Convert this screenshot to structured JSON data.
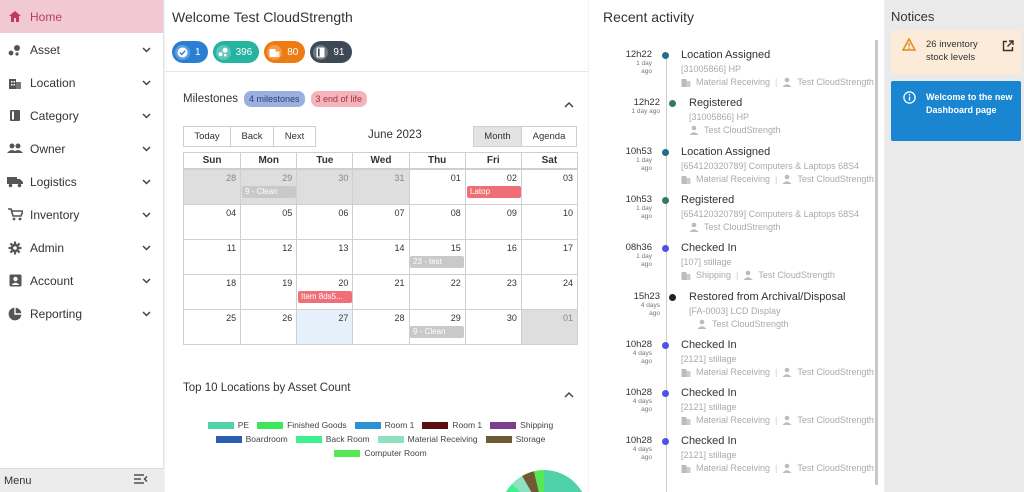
{
  "sidebar": {
    "items": [
      {
        "label": "Home",
        "icon": "home-icon"
      },
      {
        "label": "Asset",
        "icon": "asset-icon"
      },
      {
        "label": "Location",
        "icon": "location-icon"
      },
      {
        "label": "Category",
        "icon": "category-icon"
      },
      {
        "label": "Owner",
        "icon": "owner-icon"
      },
      {
        "label": "Logistics",
        "icon": "truck-icon"
      },
      {
        "label": "Inventory",
        "icon": "cart-icon"
      },
      {
        "label": "Admin",
        "icon": "gear-icon"
      },
      {
        "label": "Account",
        "icon": "account-icon"
      },
      {
        "label": "Reporting",
        "icon": "pie-chart-icon"
      }
    ],
    "footer_label": "Menu"
  },
  "main": {
    "welcome": "Welcome Test CloudStrength",
    "pills": [
      {
        "value": "1",
        "color": "#2b7fd3",
        "icon": "check-circle-icon"
      },
      {
        "value": "396",
        "color": "#26b3a0",
        "icon": "asset-icon"
      },
      {
        "value": "80",
        "color": "#ee7a12",
        "icon": "building-icon"
      },
      {
        "value": "91",
        "color": "#3d4a55",
        "icon": "book-icon"
      }
    ]
  },
  "milestones": {
    "title": "Milestones",
    "chip_milestones": "4 milestones",
    "chip_end": "3 end of life"
  },
  "calendar": {
    "today": "Today",
    "back": "Back",
    "next": "Next",
    "title": "June 2023",
    "month": "Month",
    "agenda": "Agenda",
    "weekdays": [
      "Sun",
      "Mon",
      "Tue",
      "Wed",
      "Thu",
      "Fri",
      "Sat"
    ],
    "weeks": [
      [
        "28",
        "29",
        "30",
        "31",
        "01",
        "02",
        "03"
      ],
      [
        "04",
        "05",
        "06",
        "07",
        "08",
        "09",
        "10"
      ],
      [
        "11",
        "12",
        "13",
        "14",
        "15",
        "16",
        "17"
      ],
      [
        "18",
        "19",
        "20",
        "21",
        "22",
        "23",
        "24"
      ],
      [
        "25",
        "26",
        "27",
        "28",
        "29",
        "30",
        "01"
      ]
    ],
    "events": {
      "e1": "9 - Clean",
      "e2": "Latop",
      "e3": "23 - test",
      "e4": "Item 8ds5...",
      "e5": "9 - Clean"
    }
  },
  "locations": {
    "title": "Top 10 Locations by Asset Count",
    "legend": [
      {
        "label": "PE",
        "color": "#4fd2a8"
      },
      {
        "label": "Finished Goods",
        "color": "#3ee65c"
      },
      {
        "label": "Room 1",
        "color": "#2c92d8"
      },
      {
        "label": "Room 1",
        "color": "#5a1010"
      },
      {
        "label": "Shipping",
        "color": "#7b3f8c"
      },
      {
        "label": "Boardroom",
        "color": "#2d5fb0"
      },
      {
        "label": "Back Room",
        "color": "#3ff08e"
      },
      {
        "label": "Material Receiving",
        "color": "#8fe0c0"
      },
      {
        "label": "Storage",
        "color": "#6e5a35"
      },
      {
        "label": "Computer Room",
        "color": "#55ea55"
      }
    ]
  },
  "activity": {
    "title": "Recent activity",
    "items": [
      {
        "time": "12h22",
        "ago1": "1 day",
        "ago2": "ago",
        "title": "Location Assigned",
        "sub": "[31005866] HP",
        "location": "Material Receiving",
        "user": "Test CloudStrength",
        "dot": "#1f6f8b"
      },
      {
        "time": "12h22",
        "ago1": "1 day ago",
        "ago2": "",
        "title": "Registered",
        "sub": "[31005866] HP",
        "location": "",
        "user": "Test CloudStrength",
        "dot": "#2e7d5b"
      },
      {
        "time": "10h53",
        "ago1": "1 day",
        "ago2": "ago",
        "title": "Location Assigned",
        "sub": "[654120320789] Computers & Laptops 68S4",
        "location": "Material Receiving",
        "user": "Test CloudStrength",
        "dot": "#1f6f8b"
      },
      {
        "time": "10h53",
        "ago1": "1 day",
        "ago2": "ago",
        "title": "Registered",
        "sub": "[654120320789] Computers & Laptops 68S4",
        "location": "",
        "user": "Test CloudStrength",
        "dot": "#2e7d5b"
      },
      {
        "time": "08h36",
        "ago1": "1 day",
        "ago2": "ago",
        "title": "Checked In",
        "sub": "[107] stillage",
        "location": "Shipping",
        "user": "Test CloudStrength",
        "dot": "#4a52e8"
      },
      {
        "time": "15h23",
        "ago1": "4 days",
        "ago2": "ago",
        "title": "Restored from Archival/Disposal",
        "sub": "[FA-0003] LCD Display",
        "location": "",
        "user": "Test CloudStrength",
        "dot": "#222222"
      },
      {
        "time": "10h28",
        "ago1": "4 days",
        "ago2": "ago",
        "title": "Checked In",
        "sub": "[2121] stillage",
        "location": "Material Receiving",
        "user": "Test CloudStrength",
        "dot": "#4a52e8"
      },
      {
        "time": "10h28",
        "ago1": "4 days",
        "ago2": "ago",
        "title": "Checked In",
        "sub": "[2121] stillage",
        "location": "Material Receiving",
        "user": "Test CloudStrength",
        "dot": "#4a52e8"
      },
      {
        "time": "10h28",
        "ago1": "4 days",
        "ago2": "ago",
        "title": "Checked In",
        "sub": "[2121] stillage",
        "location": "Material Receiving",
        "user": "Test CloudStrength",
        "dot": "#4a52e8"
      }
    ]
  },
  "notices": {
    "title": "Notices",
    "n1": "26 inventory stock levels",
    "n2": "Welcome to the new Dashboard page"
  }
}
